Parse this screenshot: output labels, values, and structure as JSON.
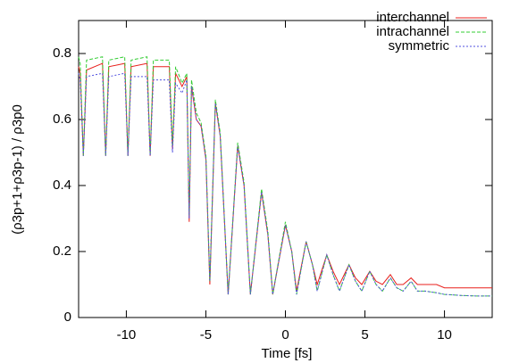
{
  "chart_data": {
    "type": "line",
    "xlabel": "Time [fs]",
    "ylabel": "(ρ3p+1+ρ3p-1) / ρ3p0",
    "xlim": [
      -13,
      13
    ],
    "xticks": [
      -10,
      -5,
      0,
      5,
      10
    ],
    "ylim": [
      0,
      0.9
    ],
    "yticks": [
      0,
      0.2,
      0.4,
      0.6,
      0.8
    ],
    "legend": "top-right",
    "x": [
      -13,
      -12.9,
      -12.7,
      -12.5,
      -11.5,
      -11.3,
      -11.1,
      -10.1,
      -9.9,
      -9.7,
      -8.7,
      -8.5,
      -8.3,
      -7.3,
      -7.1,
      -6.9,
      -6.5,
      -6.2,
      -6.05,
      -5.9,
      -5.6,
      -5.3,
      -5.0,
      -4.75,
      -4.4,
      -4.1,
      -3.6,
      -3.0,
      -2.6,
      -2.2,
      -1.5,
      -1.1,
      -0.8,
      0,
      0.4,
      0.7,
      1.3,
      1.7,
      2.0,
      2.6,
      3.0,
      3.4,
      4.0,
      4.4,
      4.8,
      5.3,
      5.7,
      6.1,
      6.6,
      7.0,
      7.4,
      7.9,
      8.3,
      8.8,
      9.5,
      10,
      11,
      12,
      13
    ],
    "series": [
      {
        "name": "interchannel",
        "color": "#e8201c",
        "dash": "none",
        "values": [
          0.76,
          0.74,
          0.49,
          0.75,
          0.77,
          0.49,
          0.76,
          0.77,
          0.49,
          0.76,
          0.77,
          0.49,
          0.76,
          0.76,
          0.51,
          0.74,
          0.7,
          0.73,
          0.29,
          0.7,
          0.6,
          0.58,
          0.48,
          0.1,
          0.65,
          0.55,
          0.07,
          0.52,
          0.4,
          0.07,
          0.38,
          0.25,
          0.07,
          0.28,
          0.2,
          0.08,
          0.23,
          0.16,
          0.1,
          0.19,
          0.14,
          0.1,
          0.16,
          0.12,
          0.1,
          0.14,
          0.11,
          0.1,
          0.13,
          0.1,
          0.1,
          0.12,
          0.1,
          0.1,
          0.1,
          0.09,
          0.09,
          0.09,
          0.09
        ]
      },
      {
        "name": "intrachannel",
        "color": "#33cc33",
        "dash": "4,2",
        "values": [
          0.79,
          0.77,
          0.49,
          0.78,
          0.79,
          0.49,
          0.78,
          0.79,
          0.49,
          0.78,
          0.79,
          0.49,
          0.78,
          0.78,
          0.52,
          0.76,
          0.71,
          0.74,
          0.31,
          0.72,
          0.62,
          0.59,
          0.49,
          0.11,
          0.66,
          0.56,
          0.07,
          0.53,
          0.41,
          0.07,
          0.39,
          0.26,
          0.07,
          0.29,
          0.2,
          0.07,
          0.23,
          0.16,
          0.08,
          0.19,
          0.13,
          0.08,
          0.16,
          0.11,
          0.08,
          0.14,
          0.1,
          0.08,
          0.12,
          0.09,
          0.08,
          0.11,
          0.08,
          0.08,
          0.075,
          0.07,
          0.067,
          0.065,
          0.065
        ]
      },
      {
        "name": "symmetric",
        "color": "#5050e0",
        "dash": "2,2",
        "values": [
          0.74,
          0.72,
          0.49,
          0.73,
          0.74,
          0.49,
          0.73,
          0.74,
          0.49,
          0.73,
          0.73,
          0.49,
          0.72,
          0.72,
          0.5,
          0.71,
          0.68,
          0.72,
          0.3,
          0.7,
          0.6,
          0.58,
          0.48,
          0.11,
          0.65,
          0.55,
          0.07,
          0.52,
          0.4,
          0.07,
          0.38,
          0.25,
          0.07,
          0.28,
          0.2,
          0.07,
          0.23,
          0.16,
          0.08,
          0.19,
          0.13,
          0.08,
          0.16,
          0.11,
          0.08,
          0.14,
          0.1,
          0.08,
          0.12,
          0.09,
          0.08,
          0.11,
          0.08,
          0.08,
          0.075,
          0.07,
          0.067,
          0.065,
          0.065
        ]
      }
    ]
  }
}
